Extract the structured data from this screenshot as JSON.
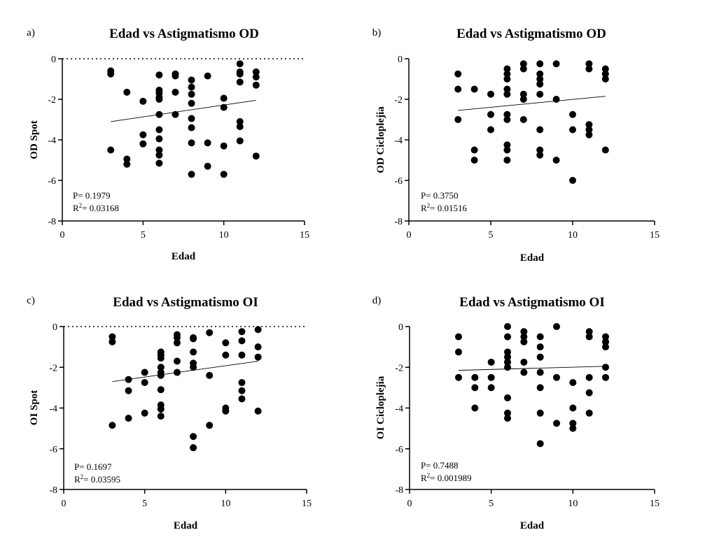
{
  "figure": {
    "panels": [
      {
        "label": "a)",
        "stat_p": "P= 0.1979",
        "stat_r2_prefix": "R",
        "stat_r2_sup": "2",
        "stat_r2_value": "= 0.03168"
      },
      {
        "label": "b)",
        "stat_p": "P= 0.3750",
        "stat_r2_prefix": "R",
        "stat_r2_sup": "2",
        "stat_r2_value": "= 0.01516"
      },
      {
        "label": "c)",
        "stat_p": "P= 0.1697",
        "stat_r2_prefix": "R",
        "stat_r2_sup": "2",
        "stat_r2_value": "= 0.03595"
      },
      {
        "label": "d)",
        "stat_p": "P= 0.7488",
        "stat_r2_prefix": "R",
        "stat_r2_sup": "2",
        "stat_r2_value": "= 0.001989"
      }
    ]
  },
  "chart_data": [
    {
      "type": "scatter",
      "title": "Edad vs Astigmatismo OD",
      "xlabel": "Edad",
      "ylabel": "OD Spot",
      "xlim": [
        0,
        15
      ],
      "ylim": [
        -8,
        0
      ],
      "xticks": [
        0,
        5,
        10,
        15
      ],
      "yticks": [
        0,
        -2,
        -4,
        -6,
        -8
      ],
      "zero_reference_line": true,
      "regression": {
        "x": [
          3,
          12
        ],
        "y": [
          -3.1,
          -2.05
        ]
      },
      "points": [
        [
          3,
          -0.6
        ],
        [
          3,
          -0.75
        ],
        [
          3,
          -4.5
        ],
        [
          4,
          -1.65
        ],
        [
          4,
          -4.95
        ],
        [
          4,
          -5.2
        ],
        [
          5,
          -2.1
        ],
        [
          5,
          -3.75
        ],
        [
          5,
          -4.2
        ],
        [
          6,
          -0.8
        ],
        [
          6,
          -1.55
        ],
        [
          6,
          -1.7
        ],
        [
          6,
          -1.9
        ],
        [
          6,
          -2.0
        ],
        [
          6,
          -2.75
        ],
        [
          6,
          -3.5
        ],
        [
          6,
          -3.95
        ],
        [
          6,
          -4.5
        ],
        [
          6,
          -4.75
        ],
        [
          6,
          -5.15
        ],
        [
          7,
          -0.75
        ],
        [
          7,
          -0.85
        ],
        [
          7,
          -1.65
        ],
        [
          7,
          -2.75
        ],
        [
          8,
          -1.05
        ],
        [
          8,
          -1.4
        ],
        [
          8,
          -1.75
        ],
        [
          8,
          -2.2
        ],
        [
          8,
          -2.95
        ],
        [
          8,
          -3.4
        ],
        [
          8,
          -4.15
        ],
        [
          8,
          -5.7
        ],
        [
          9,
          -0.85
        ],
        [
          9,
          -4.15
        ],
        [
          9,
          -5.3
        ],
        [
          10,
          -1.95
        ],
        [
          10,
          -2.4
        ],
        [
          10,
          -4.3
        ],
        [
          10,
          -5.7
        ],
        [
          11,
          -0.25
        ],
        [
          11,
          -0.65
        ],
        [
          11,
          -0.75
        ],
        [
          11,
          -1.15
        ],
        [
          11,
          -3.1
        ],
        [
          11,
          -3.35
        ],
        [
          11,
          -4.05
        ],
        [
          12,
          -0.65
        ],
        [
          12,
          -0.9
        ],
        [
          12,
          -1.3
        ],
        [
          12,
          -4.8
        ]
      ]
    },
    {
      "type": "scatter",
      "title": "Edad vs Astigmatismo OD",
      "xlabel": "Edad",
      "ylabel": "OD Cicloplejia",
      "xlim": [
        0,
        15
      ],
      "ylim": [
        -8,
        0
      ],
      "xticks": [
        0,
        5,
        10,
        15
      ],
      "yticks": [
        0,
        -2,
        -4,
        -6,
        -8
      ],
      "zero_reference_line": false,
      "regression": {
        "x": [
          3,
          12
        ],
        "y": [
          -2.55,
          -1.85
        ]
      },
      "points": [
        [
          3,
          -0.75
        ],
        [
          3,
          -1.5
        ],
        [
          3,
          -3.0
        ],
        [
          4,
          -1.5
        ],
        [
          4,
          -4.5
        ],
        [
          4,
          -5.0
        ],
        [
          5,
          -1.75
        ],
        [
          5,
          -2.75
        ],
        [
          5,
          -3.5
        ],
        [
          6,
          -0.5
        ],
        [
          6,
          -0.75
        ],
        [
          6,
          -1.0
        ],
        [
          6,
          -1.5
        ],
        [
          6,
          -1.75
        ],
        [
          6,
          -2.75
        ],
        [
          6,
          -3.0
        ],
        [
          6,
          -4.25
        ],
        [
          6,
          -4.5
        ],
        [
          6,
          -5.0
        ],
        [
          7,
          -0.25
        ],
        [
          7,
          -0.5
        ],
        [
          7,
          -1.75
        ],
        [
          7,
          -2.0
        ],
        [
          7,
          -3.0
        ],
        [
          8,
          -0.25
        ],
        [
          8,
          -0.75
        ],
        [
          8,
          -1.0
        ],
        [
          8,
          -1.25
        ],
        [
          8,
          -1.75
        ],
        [
          8,
          -3.5
        ],
        [
          8,
          -4.5
        ],
        [
          8,
          -4.75
        ],
        [
          9,
          -0.25
        ],
        [
          9,
          -2.0
        ],
        [
          9,
          -5.0
        ],
        [
          10,
          -2.75
        ],
        [
          10,
          -3.5
        ],
        [
          10,
          -6.0
        ],
        [
          11,
          -0.25
        ],
        [
          11,
          -0.5
        ],
        [
          11,
          -3.25
        ],
        [
          11,
          -3.5
        ],
        [
          11,
          -3.75
        ],
        [
          12,
          -0.5
        ],
        [
          12,
          -0.75
        ],
        [
          12,
          -1.0
        ],
        [
          12,
          -4.5
        ]
      ]
    },
    {
      "type": "scatter",
      "title": "Edad vs Astigmatismo OI",
      "xlabel": "Edad",
      "ylabel": "OI Spot",
      "xlim": [
        0,
        15
      ],
      "ylim": [
        -8,
        0
      ],
      "xticks": [
        0,
        5,
        10,
        15
      ],
      "yticks": [
        0,
        -2,
        -4,
        -6,
        -8
      ],
      "zero_reference_line": true,
      "regression": {
        "x": [
          3,
          12
        ],
        "y": [
          -2.7,
          -1.7
        ]
      },
      "points": [
        [
          3,
          -0.5
        ],
        [
          3,
          -0.75
        ],
        [
          3,
          -4.85
        ],
        [
          4,
          -2.6
        ],
        [
          4,
          -3.15
        ],
        [
          4,
          -4.5
        ],
        [
          5,
          -2.25
        ],
        [
          5,
          -2.75
        ],
        [
          5,
          -4.25
        ],
        [
          6,
          -1.25
        ],
        [
          6,
          -1.4
        ],
        [
          6,
          -1.55
        ],
        [
          6,
          -2.0
        ],
        [
          6,
          -2.25
        ],
        [
          6,
          -2.4
        ],
        [
          6,
          -3.1
        ],
        [
          6,
          -3.85
        ],
        [
          6,
          -4.05
        ],
        [
          6,
          -4.4
        ],
        [
          7,
          -0.4
        ],
        [
          7,
          -0.55
        ],
        [
          7,
          -0.8
        ],
        [
          7,
          -1.7
        ],
        [
          7,
          -2.25
        ],
        [
          8,
          -0.55
        ],
        [
          8,
          -0.6
        ],
        [
          8,
          -1.25
        ],
        [
          8,
          -1.8
        ],
        [
          8,
          -2.0
        ],
        [
          8,
          -5.4
        ],
        [
          8,
          -5.95
        ],
        [
          9,
          -0.3
        ],
        [
          9,
          -2.4
        ],
        [
          9,
          -4.85
        ],
        [
          10,
          -0.8
        ],
        [
          10,
          -1.4
        ],
        [
          10,
          -4.0
        ],
        [
          10,
          -4.15
        ],
        [
          11,
          -0.25
        ],
        [
          11,
          -0.7
        ],
        [
          11,
          -1.4
        ],
        [
          11,
          -2.75
        ],
        [
          11,
          -3.15
        ],
        [
          11,
          -3.55
        ],
        [
          12,
          -0.15
        ],
        [
          12,
          -1.0
        ],
        [
          12,
          -1.5
        ],
        [
          12,
          -4.15
        ]
      ]
    },
    {
      "type": "scatter",
      "title": "Edad vs Astigmatismo OI",
      "xlabel": "Edad",
      "ylabel": "OI Cicloplejia",
      "xlim": [
        0,
        15
      ],
      "ylim": [
        -8,
        0
      ],
      "xticks": [
        0,
        5,
        10,
        15
      ],
      "yticks": [
        0,
        -2,
        -4,
        -6,
        -8
      ],
      "zero_reference_line": false,
      "regression": {
        "x": [
          3,
          12
        ],
        "y": [
          -2.15,
          -1.95
        ]
      },
      "points": [
        [
          3,
          -0.5
        ],
        [
          3,
          -1.25
        ],
        [
          3,
          -2.5
        ],
        [
          4,
          -2.5
        ],
        [
          4,
          -3.0
        ],
        [
          4,
          -4.0
        ],
        [
          5,
          -1.75
        ],
        [
          5,
          -2.5
        ],
        [
          5,
          -3.0
        ],
        [
          6,
          0.0
        ],
        [
          6,
          -0.5
        ],
        [
          6,
          -1.25
        ],
        [
          6,
          -1.5
        ],
        [
          6,
          -1.75
        ],
        [
          6,
          -2.0
        ],
        [
          6,
          -3.5
        ],
        [
          6,
          -4.25
        ],
        [
          6,
          -4.5
        ],
        [
          7,
          -0.25
        ],
        [
          7,
          -0.5
        ],
        [
          7,
          -0.75
        ],
        [
          7,
          -1.75
        ],
        [
          7,
          -2.25
        ],
        [
          8,
          -0.5
        ],
        [
          8,
          -1.0
        ],
        [
          8,
          -1.5
        ],
        [
          8,
          -2.25
        ],
        [
          8,
          -3.0
        ],
        [
          8,
          -4.25
        ],
        [
          8,
          -5.75
        ],
        [
          9,
          0.0
        ],
        [
          9,
          -2.5
        ],
        [
          9,
          -4.75
        ],
        [
          10,
          -2.75
        ],
        [
          10,
          -4.0
        ],
        [
          10,
          -4.75
        ],
        [
          10,
          -5.0
        ],
        [
          11,
          -0.25
        ],
        [
          11,
          -0.5
        ],
        [
          11,
          -2.5
        ],
        [
          11,
          -3.25
        ],
        [
          11,
          -4.25
        ],
        [
          12,
          -0.5
        ],
        [
          12,
          -0.75
        ],
        [
          12,
          -1.0
        ],
        [
          12,
          -2.0
        ],
        [
          12,
          -2.5
        ]
      ]
    }
  ]
}
